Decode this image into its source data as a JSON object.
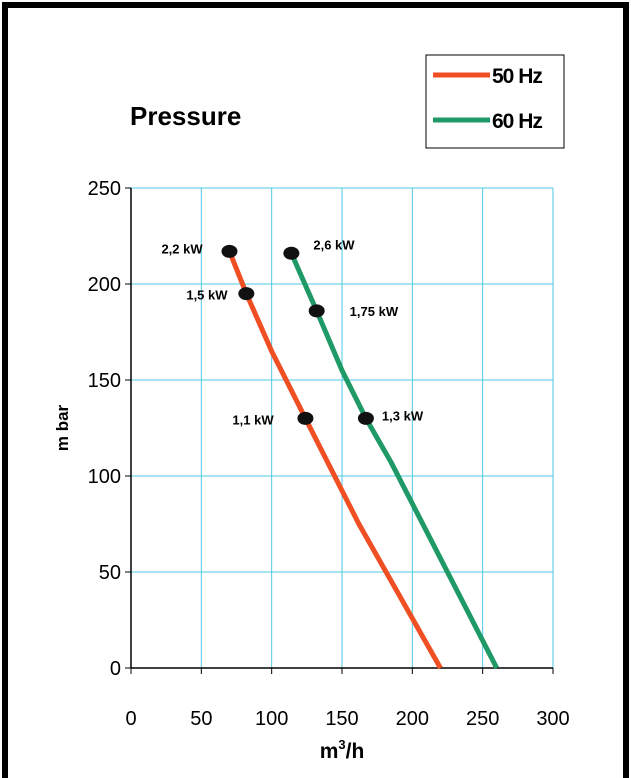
{
  "chart_data": {
    "type": "line",
    "title": "Pressure",
    "xlabel": {
      "base": "m",
      "superscript": "3",
      "suffix": "/h"
    },
    "ylabel": "m bar",
    "xlim": [
      0,
      300
    ],
    "ylim": [
      0,
      250
    ],
    "x_ticks": [
      0,
      50,
      100,
      150,
      200,
      250,
      300
    ],
    "y_ticks": [
      0,
      50,
      100,
      150,
      200,
      250
    ],
    "grid": true,
    "legend": "top-right",
    "series": [
      {
        "name": "50 Hz",
        "color": "#f04e23",
        "x": [
          70,
          82,
          100,
          124,
          162,
          220
        ],
        "y": [
          217,
          195,
          165,
          130,
          75,
          0
        ],
        "markers": [
          {
            "x": 70,
            "y": 217,
            "label": "2,2 kW"
          },
          {
            "x": 82,
            "y": 195,
            "label": "1,5 kW"
          },
          {
            "x": 124,
            "y": 130,
            "label": "1,1 kW"
          }
        ]
      },
      {
        "name": "60 Hz",
        "color": "#1f9a66",
        "x": [
          114,
          132,
          150,
          167,
          185,
          260
        ],
        "y": [
          216,
          186,
          155,
          130,
          107,
          0
        ],
        "markers": [
          {
            "x": 114,
            "y": 216,
            "label": "2,6 kW"
          },
          {
            "x": 132,
            "y": 186,
            "label": "1,75 kW"
          },
          {
            "x": 167,
            "y": 130,
            "label": "1,3 kW"
          }
        ]
      }
    ]
  }
}
